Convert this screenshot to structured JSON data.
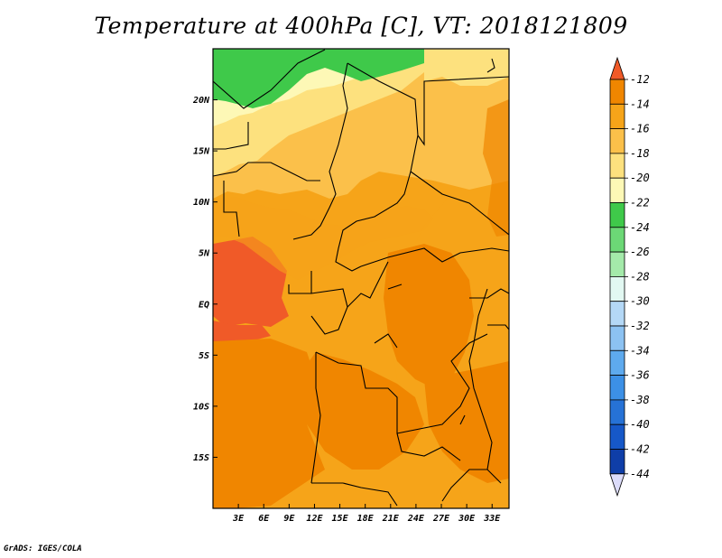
{
  "chart_data": {
    "type": "heatmap",
    "title": "Temperature at 400hPa [C], VT: 2018121809",
    "x_ticks": [
      "3E",
      "6E",
      "9E",
      "12E",
      "15E",
      "18E",
      "21E",
      "24E",
      "27E",
      "30E",
      "33E"
    ],
    "y_ticks": [
      "20N",
      "15N",
      "10N",
      "5N",
      "EQ",
      "5S",
      "10S",
      "15S"
    ],
    "x_range_deg": [
      0,
      35
    ],
    "y_range_deg": [
      -20,
      25
    ],
    "colorbar": {
      "levels": [
        -12,
        -14,
        -16,
        -18,
        -20,
        -22,
        -24,
        -26,
        -28,
        -30,
        -32,
        -34,
        -36,
        -38,
        -40,
        -42,
        -44
      ],
      "colors": [
        "#f05a28",
        "#f08600",
        "#f6a419",
        "#fbc04a",
        "#fde17e",
        "#fdf8b6",
        "#3fc94a",
        "#6cd876",
        "#a4eaaa",
        "#e2f8f2",
        "#b4d8f6",
        "#8cc2f2",
        "#5eaaee",
        "#3c90e6",
        "#2672d6",
        "#1658c8",
        "#0f3ea8",
        "#141a78",
        "#dcdcfa"
      ]
    }
  },
  "credit": "GrADS: IGES/COLA"
}
